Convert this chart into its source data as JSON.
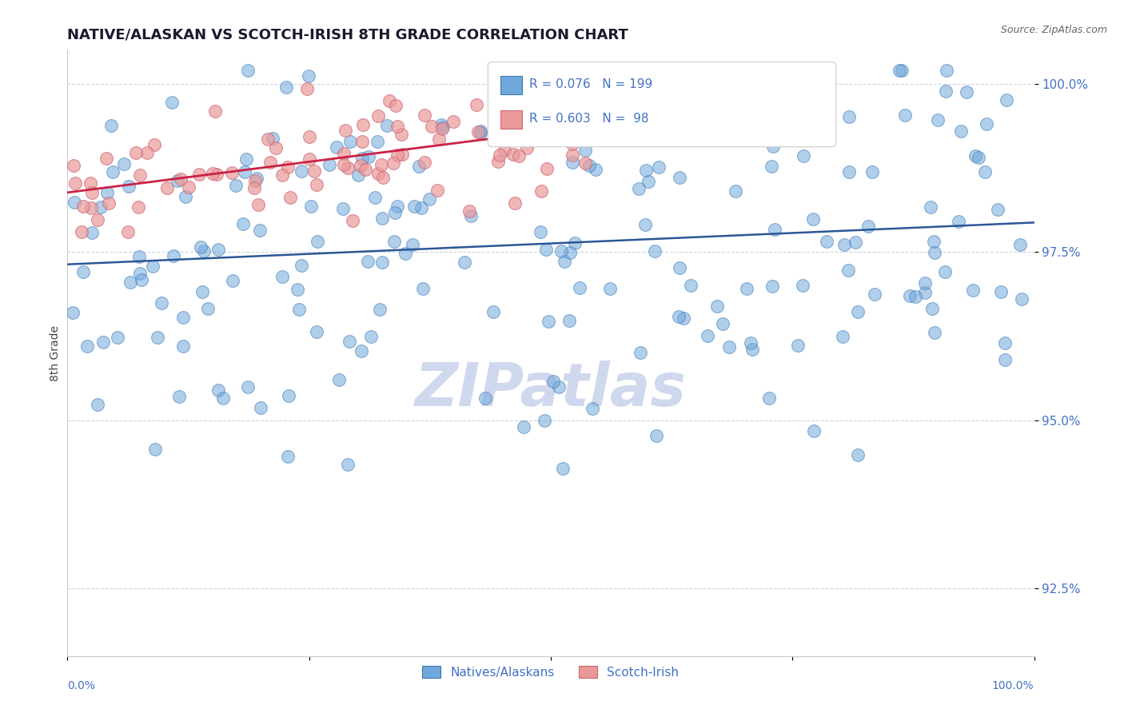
{
  "title": "NATIVE/ALASKAN VS SCOTCH-IRISH 8TH GRADE CORRELATION CHART",
  "source_text": "Source: ZipAtlas.com",
  "ylabel": "8th Grade",
  "xlim": [
    0.0,
    100.0
  ],
  "ylim": [
    91.5,
    100.5
  ],
  "yticks": [
    92.5,
    95.0,
    97.5,
    100.0
  ],
  "ytick_labels": [
    "92.5%",
    "95.0%",
    "97.5%",
    "100.0%"
  ],
  "blue_R": 0.076,
  "blue_N": 199,
  "pink_R": 0.603,
  "pink_N": 98,
  "blue_color": "#6fa8dc",
  "pink_color": "#ea9999",
  "blue_edge_color": "#3c78b4",
  "pink_edge_color": "#cc6677",
  "blue_line_color": "#2b5797",
  "pink_line_color": "#cc2244",
  "title_color": "#1a1a2e",
  "axis_label_color": "#4472c4",
  "watermark_color": "#d0d8ee",
  "legend_label_color": "#4472c4"
}
